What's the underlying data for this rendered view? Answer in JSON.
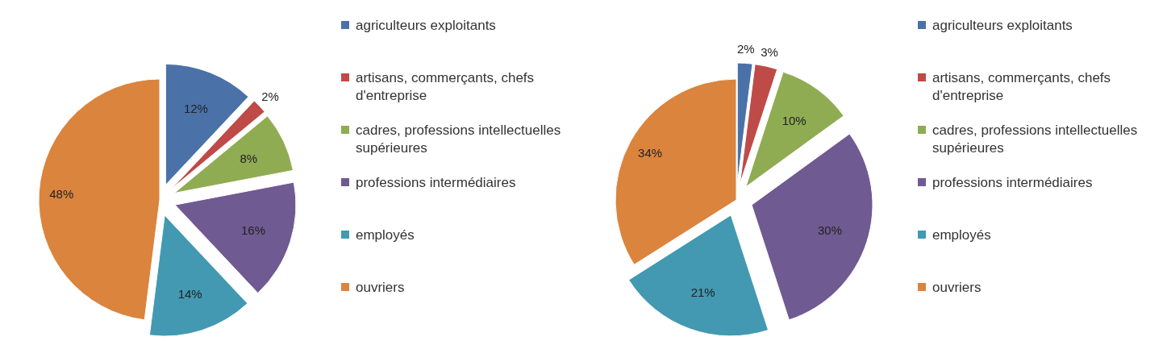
{
  "chart_data": [
    {
      "type": "pie",
      "categories": [
        "agriculteurs exploitants",
        "artisans, commerçants, chefs d'entreprise",
        "cadres, professions intellectuelles supérieures",
        "professions intermédiaires",
        "employés",
        "ouvriers"
      ],
      "values": [
        12,
        2,
        8,
        16,
        14,
        48
      ],
      "value_labels": [
        "12%",
        "2%",
        "8%",
        "16%",
        "14%",
        "48%"
      ],
      "colors": [
        "#4a72a8",
        "#be4b48",
        "#8fac53",
        "#705a92",
        "#4299b1",
        "#db843d"
      ],
      "legend": "right"
    },
    {
      "type": "pie",
      "categories": [
        "agriculteurs exploitants",
        "artisans, commerçants, chefs d'entreprise",
        "cadres, professions intellectuelles supérieures",
        "professions intermédiaires",
        "employés",
        "ouvriers"
      ],
      "values": [
        2,
        3,
        10,
        30,
        21,
        34
      ],
      "value_labels": [
        "2%",
        "3%",
        "10%",
        "30%",
        "21%",
        "34%"
      ],
      "colors": [
        "#4a72a8",
        "#be4b48",
        "#8fac53",
        "#705a92",
        "#4299b1",
        "#db843d"
      ],
      "legend": "right"
    }
  ]
}
